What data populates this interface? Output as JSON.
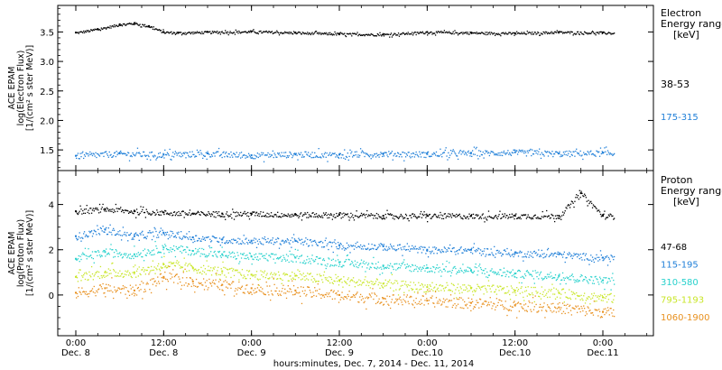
{
  "chart_data": [
    {
      "type": "scatter",
      "panel": "electron",
      "ylabel_lines": [
        "ACE EPAM",
        "log(Electron Flux)",
        "[1/(cm² s ster MeV)]"
      ],
      "ylim": [
        1.15,
        3.95
      ],
      "yticks": [
        "1.5",
        "2.0",
        "2.5",
        "3.0",
        "3.5"
      ],
      "legend_title_lines": [
        "Electron",
        "Energy ranges",
        "[keV]"
      ],
      "series": [
        {
          "name": "38-53",
          "color": "#000000",
          "x": [
            0,
            3,
            6,
            8,
            10,
            12,
            14,
            18,
            24,
            30,
            36,
            42,
            48,
            54,
            60,
            66,
            72,
            78,
            84,
            90,
            96
          ],
          "y": [
            3.49,
            3.55,
            3.63,
            3.65,
            3.6,
            3.5,
            3.49,
            3.5,
            3.51,
            3.49,
            3.47,
            3.46,
            3.5,
            3.49,
            3.48,
            3.5,
            3.49,
            3.47,
            3.49,
            3.48,
            3.44
          ]
        },
        {
          "name": "175-315",
          "color": "#1f7fd8",
          "x": [
            0,
            6,
            12,
            18,
            24,
            30,
            36,
            42,
            48,
            54,
            60,
            66,
            72,
            78,
            84,
            90,
            96
          ],
          "y": [
            1.4,
            1.44,
            1.42,
            1.44,
            1.41,
            1.43,
            1.42,
            1.44,
            1.43,
            1.45,
            1.46,
            1.44,
            1.45,
            1.44,
            1.45,
            1.44,
            1.45
          ]
        }
      ]
    },
    {
      "type": "scatter",
      "panel": "proton",
      "ylabel_lines": [
        "ACE EPAM",
        "log(Proton Flux)",
        "[1/(cm² s ster MeV)]"
      ],
      "ylim": [
        -1.8,
        5.5
      ],
      "yticks": [
        "0",
        "2",
        "4"
      ],
      "legend_title_lines": [
        "Proton",
        "Energy ranges",
        "[keV]"
      ],
      "series": [
        {
          "name": "47-68",
          "color": "#000000",
          "x": [
            0,
            4,
            8,
            12,
            16,
            20,
            24,
            30,
            36,
            42,
            48,
            54,
            60,
            66,
            69,
            72,
            78,
            84,
            90,
            96
          ],
          "y": [
            3.7,
            3.8,
            3.7,
            3.65,
            3.6,
            3.6,
            3.6,
            3.55,
            3.55,
            3.5,
            3.5,
            3.5,
            3.5,
            3.5,
            4.5,
            3.5,
            3.45,
            3.45,
            3.45,
            3.4
          ]
        },
        {
          "name": "115-195",
          "color": "#1f7fd8",
          "x": [
            0,
            4,
            8,
            12,
            16,
            20,
            24,
            30,
            36,
            42,
            48,
            54,
            60,
            66,
            72,
            78,
            84,
            90,
            96
          ],
          "y": [
            2.6,
            2.9,
            2.6,
            2.75,
            2.55,
            2.45,
            2.4,
            2.4,
            2.2,
            2.15,
            2.0,
            2.0,
            1.85,
            1.8,
            1.65,
            1.6,
            1.5,
            1.5,
            1.45
          ]
        },
        {
          "name": "310-580",
          "color": "#27d1cc",
          "x": [
            0,
            4,
            8,
            12,
            16,
            20,
            24,
            30,
            36,
            42,
            48,
            54,
            60,
            66,
            72,
            78,
            84,
            90,
            96
          ],
          "y": [
            1.6,
            1.9,
            1.8,
            2.1,
            1.95,
            1.8,
            1.7,
            1.65,
            1.45,
            1.3,
            1.2,
            1.1,
            0.95,
            0.85,
            0.65,
            0.55,
            0.45,
            0.4,
            0.3
          ]
        },
        {
          "name": "795-1193",
          "color": "#c9e629",
          "x": [
            0,
            4,
            8,
            12,
            16,
            20,
            24,
            30,
            36,
            42,
            48,
            54,
            60,
            66,
            72,
            78,
            84,
            90,
            96
          ],
          "y": [
            0.8,
            1.0,
            1.0,
            1.35,
            1.2,
            1.05,
            0.9,
            0.85,
            0.65,
            0.5,
            0.35,
            0.3,
            0.2,
            0.1,
            -0.1,
            -0.2,
            -0.3,
            -0.35,
            -0.4
          ]
        },
        {
          "name": "1060-1900",
          "color": "#e8901e",
          "x": [
            0,
            4,
            8,
            12,
            16,
            20,
            24,
            30,
            36,
            42,
            48,
            54,
            60,
            66,
            72,
            78,
            84,
            90,
            96
          ],
          "y": [
            0.1,
            0.3,
            0.2,
            0.8,
            0.6,
            0.45,
            0.3,
            0.2,
            0.0,
            -0.15,
            -0.25,
            -0.35,
            -0.45,
            -0.55,
            -0.75,
            -0.85,
            -0.95,
            -1.0,
            -1.05
          ]
        }
      ]
    }
  ],
  "xaxis": {
    "range_hours": [
      0,
      96
    ],
    "ticks": [
      {
        "hour": 0,
        "time": "0:00",
        "date": "Dec. 8"
      },
      {
        "hour": 12,
        "time": "12:00",
        "date": "Dec. 8"
      },
      {
        "hour": 24,
        "time": "0:00",
        "date": "Dec. 9"
      },
      {
        "hour": 36,
        "time": "12:00",
        "date": "Dec. 9"
      },
      {
        "hour": 48,
        "time": "0:00",
        "date": "Dec.10"
      },
      {
        "hour": 60,
        "time": "12:00",
        "date": "Dec.10"
      },
      {
        "hour": 72,
        "time": "0:00",
        "date": "Dec.11"
      }
    ],
    "label": "hours:minutes, Dec.  7, 2014 - Dec. 11, 2014"
  }
}
